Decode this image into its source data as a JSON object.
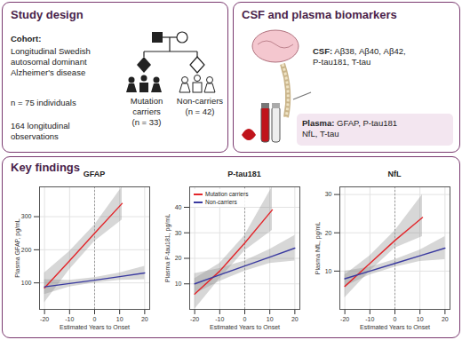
{
  "study_design": {
    "title": "Study design",
    "cohort_label": "Cohort:",
    "cohort": "Longitudinal Swedish autosomal dominant Alzheimer's disease",
    "n_individuals": "n = 75 individuals",
    "observations": "164 longitudinal observations",
    "groups": [
      {
        "label": "Mutation carriers",
        "n": "(n = 33)"
      },
      {
        "label": "Non-carriers",
        "n": "(n = 42)"
      }
    ]
  },
  "biomarkers": {
    "title": "CSF and plasma biomarkers",
    "csf": {
      "label": "CSF:",
      "lines": [
        "Aβ38, Aβ40, Aβ42,",
        "P-tau181, T-tau"
      ]
    },
    "plasma": {
      "label": "Plasma:",
      "lines": [
        "GFAP, P-tau181",
        "NfL, T-tau"
      ]
    }
  },
  "key_findings": {
    "title": "Key findings"
  },
  "chart_data": [
    {
      "type": "line",
      "title": "GFAP",
      "x_label": "Estimated Years to Onset",
      "y_label": "Plasma GFAP, pg/mL",
      "xlim": [
        -22,
        22
      ],
      "xticks": [
        -20,
        -10,
        0,
        10,
        20
      ],
      "ylim": [
        20,
        390
      ],
      "yticks": [
        100,
        200,
        300
      ],
      "grid": true,
      "x_reference": 0,
      "series": [
        {
          "color": "#e3262b",
          "x": [
            -20,
            -10,
            0,
            11
          ],
          "values": [
            85,
            167,
            250,
            340
          ],
          "lower": [
            40,
            140,
            225,
            290
          ],
          "upper": [
            130,
            195,
            275,
            390
          ]
        },
        {
          "color": "#3a3aa0",
          "x": [
            -20,
            -10,
            0,
            10,
            20
          ],
          "values": [
            88,
            98,
            108,
            119,
            130
          ],
          "lower": [
            65,
            88,
            100,
            108,
            110
          ],
          "upper": [
            110,
            108,
            116,
            130,
            150
          ]
        }
      ]
    },
    {
      "type": "line",
      "title": "P-tau181",
      "x_label": "Estimated Years to Onset",
      "y_label": "Plasma P-tau181, pg/mL",
      "xlim": [
        -22,
        22
      ],
      "xticks": [
        -20,
        -10,
        0,
        10,
        20
      ],
      "ylim": [
        0,
        48
      ],
      "yticks": [
        10,
        20,
        30,
        40
      ],
      "grid": true,
      "x_reference": 0,
      "legend": "top-left",
      "series": [
        {
          "name": "Mutation carriers",
          "color": "#e3262b",
          "x": [
            -20,
            -10,
            0,
            11
          ],
          "values": [
            6,
            15,
            26,
            39
          ],
          "lower": [
            0,
            12,
            23,
            31
          ],
          "upper": [
            12,
            18,
            29,
            48
          ]
        },
        {
          "name": "Non-carriers",
          "color": "#3a3aa0",
          "x": [
            -20,
            -10,
            0,
            10,
            20
          ],
          "values": [
            10,
            13.5,
            17,
            20.5,
            24
          ],
          "lower": [
            6,
            11,
            15,
            18,
            19
          ],
          "upper": [
            14,
            16,
            19,
            23.5,
            29
          ]
        }
      ]
    },
    {
      "type": "line",
      "title": "NfL",
      "x_label": "Estimated Years to Onset",
      "y_label": "Plasma NfL, pg/mL",
      "xlim": [
        -22,
        22
      ],
      "xticks": [
        -20,
        -10,
        0,
        10,
        20
      ],
      "ylim": [
        0,
        32
      ],
      "yticks": [
        10,
        20,
        30
      ],
      "grid": true,
      "x_reference": 0,
      "series": [
        {
          "color": "#e3262b",
          "x": [
            -20,
            -10,
            0,
            11
          ],
          "values": [
            6,
            12,
            18,
            24
          ],
          "lower": [
            3,
            10,
            16,
            19
          ],
          "upper": [
            9,
            14,
            20.5,
            30
          ]
        },
        {
          "color": "#3a3aa0",
          "x": [
            -20,
            -10,
            0,
            10,
            20
          ],
          "values": [
            8,
            10,
            12,
            14,
            16
          ],
          "lower": [
            6,
            9,
            11,
            12.5,
            13
          ],
          "upper": [
            10,
            11,
            13,
            15.5,
            19
          ]
        }
      ]
    }
  ]
}
